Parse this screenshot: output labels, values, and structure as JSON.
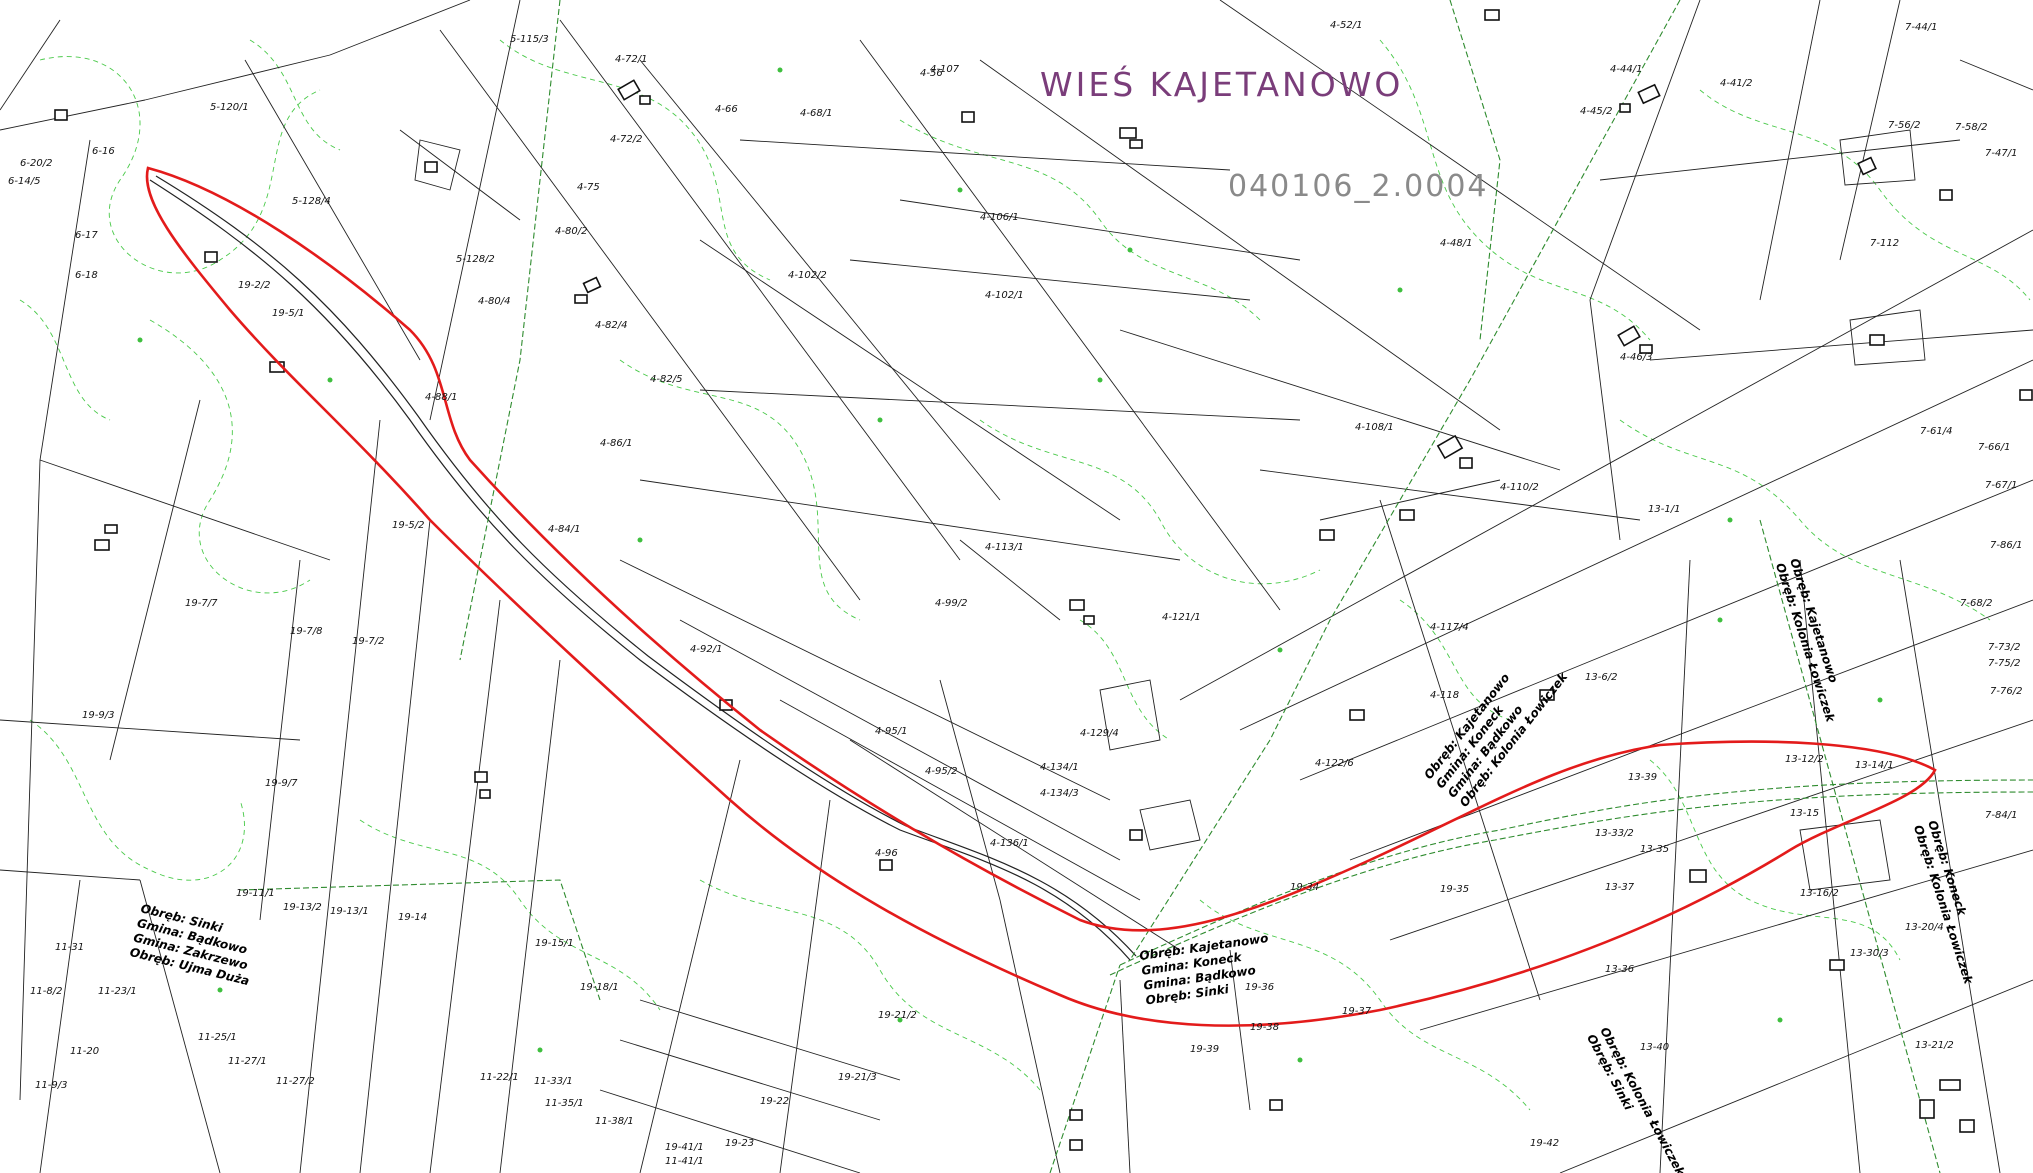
{
  "map": {
    "village_title": "WIEŚ KAJETANOWO",
    "sheet_number": "040106_2.0004",
    "highlight_color": "#e31b1b",
    "contour_color": "#49c949",
    "parcel_line_color": "#222222",
    "title_color": "#7a3d7a",
    "parcels": [
      {
        "label": "5-120/1"
      },
      {
        "label": "5-128/4"
      },
      {
        "label": "5-128/2"
      },
      {
        "label": "5-115/3"
      },
      {
        "label": "4-72/1"
      },
      {
        "label": "4-72/2"
      },
      {
        "label": "4-75"
      },
      {
        "label": "4-80/2"
      },
      {
        "label": "4-80/4"
      },
      {
        "label": "4-82/4"
      },
      {
        "label": "4-82/5"
      },
      {
        "label": "4-88/1"
      },
      {
        "label": "4-86/1"
      },
      {
        "label": "4-84/1"
      },
      {
        "label": "4-92/1"
      },
      {
        "label": "4-95/1"
      },
      {
        "label": "4-95/2"
      },
      {
        "label": "4-96"
      },
      {
        "label": "4-99/2"
      },
      {
        "label": "4-102/1"
      },
      {
        "label": "4-102/2"
      },
      {
        "label": "4-106/1"
      },
      {
        "label": "4-107"
      },
      {
        "label": "4-108/1"
      },
      {
        "label": "4-110/2"
      },
      {
        "label": "4-113/1"
      },
      {
        "label": "4-117/4"
      },
      {
        "label": "4-118"
      },
      {
        "label": "4-121/1"
      },
      {
        "label": "4-122/6"
      },
      {
        "label": "4-129/4"
      },
      {
        "label": "4-134/1"
      },
      {
        "label": "4-134/3"
      },
      {
        "label": "4-136/1"
      },
      {
        "label": "4-48/1"
      },
      {
        "label": "4-46/3"
      },
      {
        "label": "4-44/1"
      },
      {
        "label": "4-45/2"
      },
      {
        "label": "4-41/2"
      },
      {
        "label": "4-52/1"
      },
      {
        "label": "4-68/1"
      },
      {
        "label": "4-66"
      },
      {
        "label": "4-56"
      },
      {
        "label": "19-2/2"
      },
      {
        "label": "19-5/1"
      },
      {
        "label": "19-5/2"
      },
      {
        "label": "19-7/2"
      },
      {
        "label": "19-7/8"
      },
      {
        "label": "19-7/7"
      },
      {
        "label": "19-9/3"
      },
      {
        "label": "19-9/7"
      },
      {
        "label": "19-11/1"
      },
      {
        "label": "19-13/2"
      },
      {
        "label": "19-13/1"
      },
      {
        "label": "19-14"
      },
      {
        "label": "19-15/1"
      },
      {
        "label": "19-18/1"
      },
      {
        "label": "19-21/2"
      },
      {
        "label": "19-21/3"
      },
      {
        "label": "19-22"
      },
      {
        "label": "19-23"
      },
      {
        "label": "19-34"
      },
      {
        "label": "19-35"
      },
      {
        "label": "19-36"
      },
      {
        "label": "19-37"
      },
      {
        "label": "19-38"
      },
      {
        "label": "19-39"
      },
      {
        "label": "19-41/1"
      },
      {
        "label": "19-42"
      },
      {
        "label": "13-1/1"
      },
      {
        "label": "13-6/2"
      },
      {
        "label": "13-12/2"
      },
      {
        "label": "13-14/1"
      },
      {
        "label": "13-15"
      },
      {
        "label": "13-16/2"
      },
      {
        "label": "13-20/4"
      },
      {
        "label": "13-21/2"
      },
      {
        "label": "13-30/3"
      },
      {
        "label": "13-33/2"
      },
      {
        "label": "13-35"
      },
      {
        "label": "13-36"
      },
      {
        "label": "13-37"
      },
      {
        "label": "13-39"
      },
      {
        "label": "13-40"
      },
      {
        "label": "7-56/2"
      },
      {
        "label": "7-58/2"
      },
      {
        "label": "7-47/1"
      },
      {
        "label": "7-61/4"
      },
      {
        "label": "7-66/1"
      },
      {
        "label": "7-67/1"
      },
      {
        "label": "7-68/2"
      },
      {
        "label": "7-73/2"
      },
      {
        "label": "7-75/2"
      },
      {
        "label": "7-76/2"
      },
      {
        "label": "7-84/1"
      },
      {
        "label": "7-86/1"
      },
      {
        "label": "7-44/1"
      },
      {
        "label": "7-112"
      },
      {
        "label": "11-8/2"
      },
      {
        "label": "11-9/3"
      },
      {
        "label": "11-20"
      },
      {
        "label": "11-22/1"
      },
      {
        "label": "11-23/1"
      },
      {
        "label": "11-25/1"
      },
      {
        "label": "11-27/1"
      },
      {
        "label": "11-27/2"
      },
      {
        "label": "11-31"
      },
      {
        "label": "11-33/1"
      },
      {
        "label": "11-35/1"
      },
      {
        "label": "11-38/1"
      },
      {
        "label": "11-41/1"
      },
      {
        "label": "6-16"
      },
      {
        "label": "6-17"
      },
      {
        "label": "6-18"
      },
      {
        "label": "6-20/2"
      },
      {
        "label": "6-14/5"
      }
    ],
    "precinct_labels": [
      {
        "lines": [
          "Obręb: Sinki",
          "Gmina: Bądkowo",
          "Gmina: Zakrzewo",
          "Obręb: Ujma Duża"
        ]
      },
      {
        "lines": [
          "Obręb: Kajetanowo",
          "Gmina: Koneck",
          "Gmina: Bądkowo",
          "Obręb: Sinki"
        ]
      },
      {
        "lines": [
          "Obręb: Kajetanowo",
          "Gmina: Koneck",
          "Gmina: Bądkowo",
          "Obręb: Kolonia Łowiczek"
        ]
      },
      {
        "lines": [
          "Obręb: Kolonia Łowiczek",
          "Obręb: Sinki"
        ]
      },
      {
        "lines": [
          "Obręb: Kajetanowo",
          "Obręb: Kolonia Łowiczek"
        ]
      },
      {
        "lines": [
          "Obręb: Koneck",
          "Obręb: Kolonia Łowiczek"
        ]
      }
    ]
  }
}
